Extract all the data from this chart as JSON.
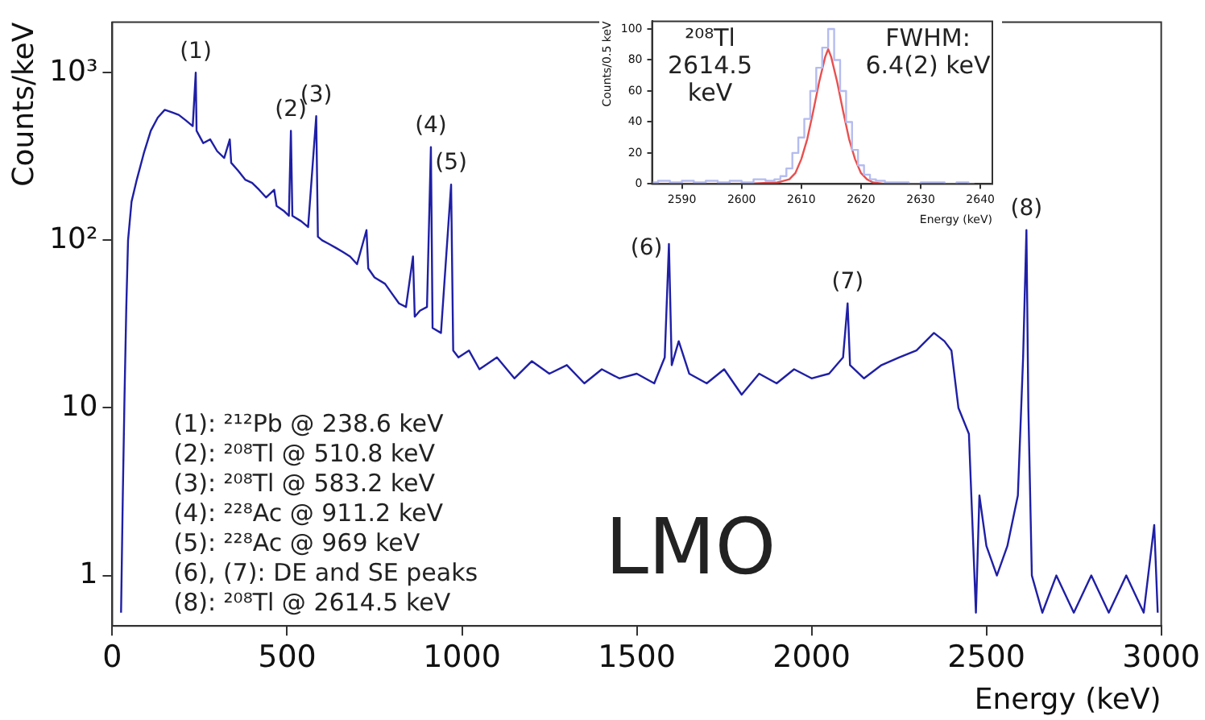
{
  "chart_data": [
    {
      "type": "line",
      "xlabel": "Energy (keV)",
      "ylabel": "Counts/keV",
      "log": true,
      "grid": false,
      "legend": false,
      "marker": "none",
      "line_style": "solid",
      "xlim": [
        0,
        3000
      ],
      "xticks": [
        0,
        500,
        1000,
        1500,
        2000,
        2500,
        3000
      ],
      "ylim": [
        0.5,
        2000
      ],
      "yticks": [
        1,
        10,
        {
          "value": 100,
          "label": "10²"
        },
        {
          "value": 1000,
          "label": "10³"
        }
      ],
      "series": [
        {
          "color": "#1f1fa6",
          "x": [
            25,
            30,
            35,
            40,
            45,
            55,
            70,
            90,
            110,
            130,
            150,
            170,
            190,
            210,
            230,
            238.6,
            241,
            260,
            280,
            300,
            320,
            336,
            340,
            360,
            380,
            400,
            420,
            440,
            463,
            470,
            490,
            505,
            510.8,
            515,
            540,
            560,
            583.2,
            588,
            600,
            620,
            640,
            660,
            680,
            700,
            727,
            732,
            750,
            780,
            800,
            820,
            840,
            860,
            865,
            880,
            900,
            911.2,
            916,
            940,
            969,
            975,
            990,
            1020,
            1050,
            1100,
            1150,
            1200,
            1250,
            1300,
            1350,
            1400,
            1450,
            1500,
            1550,
            1580,
            1592,
            1600,
            1620,
            1650,
            1700,
            1750,
            1800,
            1850,
            1900,
            1950,
            2000,
            2050,
            2090,
            2103,
            2110,
            2150,
            2200,
            2250,
            2300,
            2350,
            2380,
            2400,
            2420,
            2450,
            2470,
            2480,
            2500,
            2530,
            2560,
            2590,
            2605,
            2614.5,
            2620,
            2630,
            2660,
            2700,
            2750,
            2800,
            2850,
            2900,
            2950,
            2980,
            2990
          ],
          "values": [
            0.6,
            3,
            12,
            40,
            100,
            170,
            230,
            330,
            450,
            540,
            600,
            580,
            560,
            520,
            480,
            1000,
            450,
            380,
            400,
            340,
            310,
            400,
            290,
            260,
            230,
            220,
            200,
            180,
            200,
            160,
            150,
            140,
            450,
            140,
            130,
            120,
            550,
            105,
            100,
            95,
            90,
            85,
            80,
            72,
            115,
            68,
            60,
            55,
            48,
            42,
            40,
            80,
            35,
            38,
            40,
            360,
            30,
            28,
            215,
            22,
            20,
            22,
            17,
            20,
            15,
            19,
            16,
            18,
            14,
            17,
            15,
            16,
            14,
            20,
            95,
            18,
            25,
            16,
            14,
            17,
            12,
            16,
            14,
            17,
            15,
            16,
            20,
            42,
            18,
            15,
            18,
            20,
            22,
            28,
            25,
            22,
            10,
            7,
            0.6,
            3,
            1.5,
            1,
            1.5,
            3,
            20,
            115,
            10,
            1,
            0.6,
            1,
            0.6,
            1,
            0.6,
            1,
            0.6,
            2,
            0.6
          ]
        }
      ],
      "annotations": [
        {
          "text": "(1)",
          "x": 238.6,
          "y": 1000
        },
        {
          "text": "(2)",
          "x": 510.8,
          "y": 450
        },
        {
          "text": "(3)",
          "x": 583.2,
          "y": 550
        },
        {
          "text": "(4)",
          "x": 911.2,
          "y": 360
        },
        {
          "text": "(5)",
          "x": 969,
          "y": 215
        },
        {
          "text": "(6)",
          "x": 1592,
          "y": 95
        },
        {
          "text": "(7)",
          "x": 2103,
          "y": 42
        },
        {
          "text": "(8)",
          "x": 2614.5,
          "y": 115
        },
        "(1): ²¹²Pb @ 238.6 keV",
        "(2): ²⁰⁸Tl @ 510.8 keV",
        "(3): ²⁰⁸Tl @ 583.2 keV",
        "(4): ²²⁸Ac @ 911.2 keV",
        "(5): ²²⁸Ac @ 969 keV",
        "(6), (7): DE and SE peaks",
        "(8): ²⁰⁸Tl @ 2614.5 keV",
        "LMO"
      ]
    },
    {
      "type": "step",
      "xlabel": "Energy (keV)",
      "ylabel": "Counts/0.5 keV",
      "grid": false,
      "legend": false,
      "marker": "none",
      "line_style": "solid",
      "xlim": [
        2585,
        2642
      ],
      "xticks": [
        2590,
        2600,
        2610,
        2620,
        2630,
        2640
      ],
      "ylim": [
        0,
        105
      ],
      "yticks": [
        0,
        20,
        40,
        60,
        80,
        100
      ],
      "series": [
        {
          "color": "#b4bcf0",
          "x": [
            2585,
            2587,
            2589,
            2591,
            2593,
            2595,
            2597,
            2599,
            2601,
            2603,
            2605,
            2606,
            2607,
            2608,
            2609,
            2610,
            2611,
            2612,
            2613,
            2614,
            2615,
            2616,
            2617,
            2618,
            2619,
            2620,
            2621,
            2622,
            2623,
            2625,
            2627,
            2629,
            2631,
            2633,
            2635,
            2637,
            2639
          ],
          "values": [
            1,
            2,
            1,
            2,
            1,
            2,
            1,
            2,
            1,
            3,
            2,
            3,
            5,
            10,
            20,
            30,
            42,
            60,
            75,
            88,
            100,
            80,
            60,
            40,
            22,
            12,
            6,
            3,
            2,
            1,
            1,
            0,
            1,
            1,
            0,
            1,
            0
          ]
        },
        {
          "type": "line",
          "color": "#e8504f",
          "x": [
            2585,
            2600,
            2606,
            2607,
            2608,
            2609,
            2610,
            2611,
            2612,
            2613,
            2614,
            2614.5,
            2615,
            2616,
            2617,
            2618,
            2619,
            2620,
            2621,
            2622,
            2624
          ],
          "values": [
            0,
            0,
            1,
            2,
            3,
            7,
            16,
            29,
            47,
            66,
            82,
            87,
            82,
            66,
            47,
            29,
            16,
            7,
            3,
            1,
            0
          ]
        }
      ],
      "annotations": [
        "²⁰⁸Tl 2614.5 keV",
        "FWHM: 6.4(2) keV"
      ]
    }
  ]
}
